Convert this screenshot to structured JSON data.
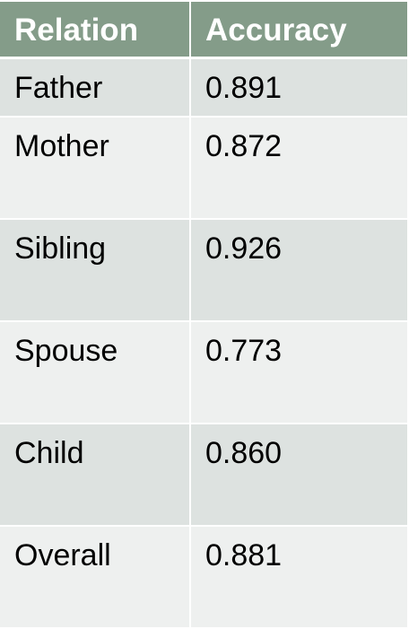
{
  "table": {
    "headers": [
      "Relation",
      "Accuracy"
    ],
    "rows": [
      {
        "relation": "Father",
        "accuracy": "0.891"
      },
      {
        "relation": "Mother",
        "accuracy": "0.872"
      },
      {
        "relation": "Sibling",
        "accuracy": "0.926"
      },
      {
        "relation": "Spouse",
        "accuracy": "0.773"
      },
      {
        "relation": "Child",
        "accuracy": "0.860"
      },
      {
        "relation": "Overall",
        "accuracy": "0.881"
      }
    ]
  },
  "colors": {
    "header_bg": "#849c89",
    "row_shaded": "#dde2e0",
    "row_light": "#eef0ef"
  }
}
